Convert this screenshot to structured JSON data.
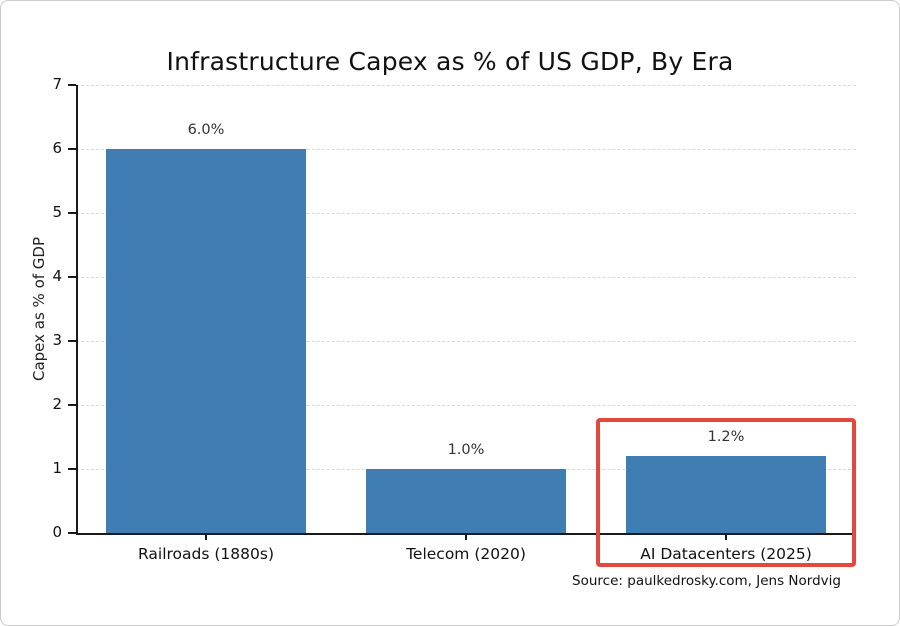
{
  "chart_data": {
    "type": "bar",
    "title": "Infrastructure Capex as % of US GDP, By Era",
    "categories": [
      "Railroads (1880s)",
      "Telecom (2020)",
      "AI Datacenters (2025)"
    ],
    "values": [
      6.0,
      1.0,
      1.2
    ],
    "value_labels": [
      "6.0%",
      "1.0%",
      "1.2%"
    ],
    "xlabel": "",
    "ylabel": "Capex as % of GDP",
    "ylim": [
      0,
      7
    ],
    "yticks": [
      0,
      1,
      2,
      3,
      4,
      5,
      6,
      7
    ],
    "grid": true,
    "legend": "none",
    "bar_color": "#3f7db2",
    "highlight_index": 2,
    "highlight_color": "#e4473c"
  },
  "source": "Source: paulkedrosky.com, Jens Nordvig"
}
